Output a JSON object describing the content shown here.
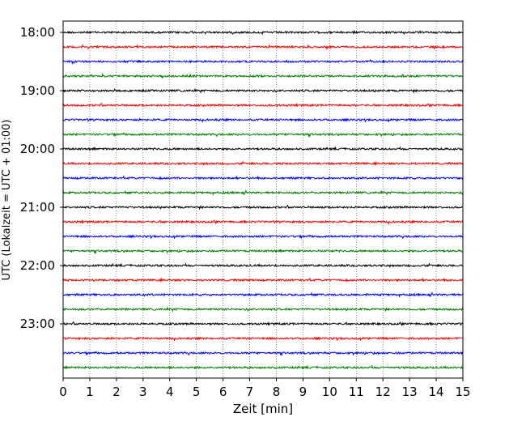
{
  "chart_data": {
    "type": "line",
    "title": "",
    "xlabel": "Zeit  [min]",
    "ylabel": "UTC (Lokalzeit = UTC + 01:00)",
    "xlim": [
      0,
      15
    ],
    "x_ticks": [
      0,
      1,
      2,
      3,
      4,
      5,
      6,
      7,
      8,
      9,
      10,
      11,
      12,
      13,
      14,
      15
    ],
    "y_tick_labels": [
      "18:00",
      "19:00",
      "20:00",
      "21:00",
      "22:00",
      "23:00"
    ],
    "grid": "vertical dotted at each minute",
    "trace_interval_min": 15,
    "row_colors": [
      "#000000",
      "#ff0000",
      "#0000ff",
      "#008000"
    ],
    "traces": [
      {
        "start": "18:00",
        "color": "#000000"
      },
      {
        "start": "18:15",
        "color": "#ff0000"
      },
      {
        "start": "18:30",
        "color": "#0000ff"
      },
      {
        "start": "18:45",
        "color": "#008000"
      },
      {
        "start": "19:00",
        "color": "#000000"
      },
      {
        "start": "19:15",
        "color": "#ff0000"
      },
      {
        "start": "19:30",
        "color": "#0000ff"
      },
      {
        "start": "19:45",
        "color": "#008000"
      },
      {
        "start": "20:00",
        "color": "#000000"
      },
      {
        "start": "20:15",
        "color": "#ff0000"
      },
      {
        "start": "20:30",
        "color": "#0000ff"
      },
      {
        "start": "20:45",
        "color": "#008000"
      },
      {
        "start": "21:00",
        "color": "#000000"
      },
      {
        "start": "21:15",
        "color": "#ff0000"
      },
      {
        "start": "21:30",
        "color": "#0000ff"
      },
      {
        "start": "21:45",
        "color": "#008000"
      },
      {
        "start": "22:00",
        "color": "#000000"
      },
      {
        "start": "22:15",
        "color": "#ff0000"
      },
      {
        "start": "22:30",
        "color": "#0000ff"
      },
      {
        "start": "22:45",
        "color": "#008000"
      },
      {
        "start": "23:00",
        "color": "#000000"
      },
      {
        "start": "23:15",
        "color": "#ff0000"
      },
      {
        "start": "23:30",
        "color": "#0000ff"
      },
      {
        "start": "23:45",
        "color": "#008000"
      }
    ]
  }
}
